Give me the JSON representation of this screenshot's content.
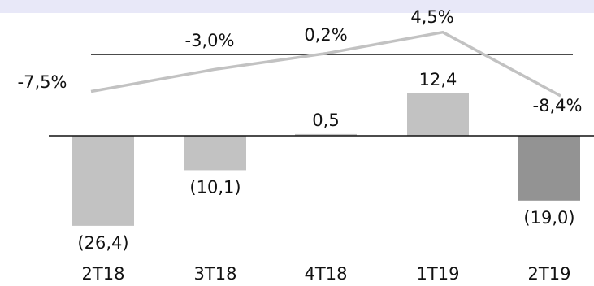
{
  "colors": {
    "band": "#e8e8f8",
    "bar_light": "#c2c2c2",
    "bar_dark": "#939393",
    "line": "#c2c2c2",
    "axis": "#111111",
    "text": "#111111"
  },
  "chart_data": {
    "type": "bar",
    "title": "",
    "categories": [
      "2T18",
      "3T18",
      "4T18",
      "1T19",
      "2T19"
    ],
    "series": [
      {
        "values": [
          -26.4,
          -10.1,
          0.5,
          12.4,
          -19.0
        ],
        "labels": [
          "(26,4)",
          "(10,1)",
          "0,5",
          "12,4",
          "(19,0)"
        ],
        "highlight_index": 4
      },
      {
        "type": "line",
        "values": [
          -7.5,
          -3.0,
          0.2,
          4.5,
          -8.4
        ],
        "labels": [
          "-7,5%",
          "-3,0%",
          "0,2%",
          "4,5%",
          "-8,4%"
        ]
      }
    ],
    "legend": "none",
    "grid": false
  }
}
